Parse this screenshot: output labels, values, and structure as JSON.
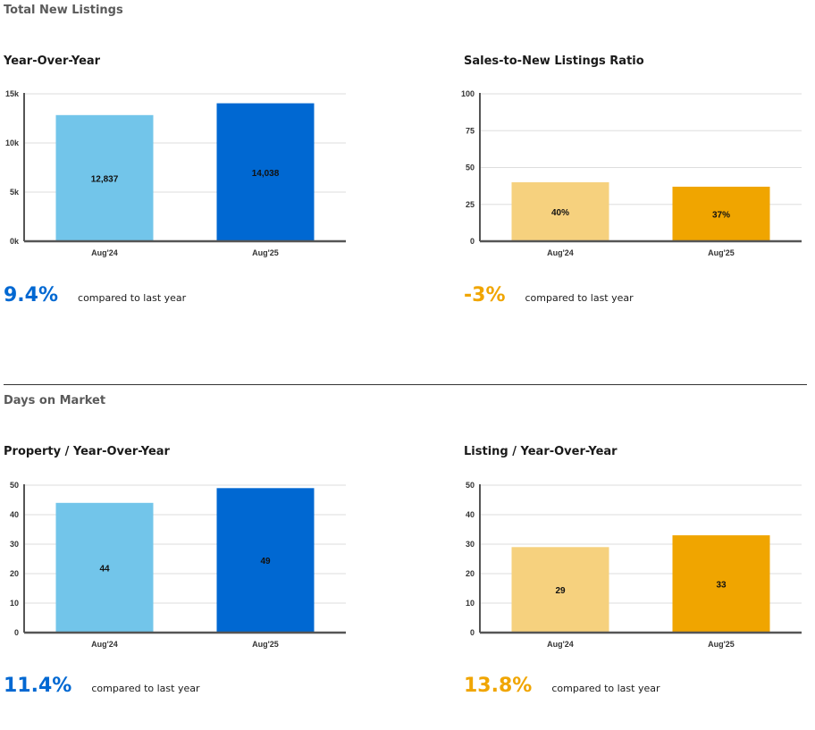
{
  "sections": [
    {
      "title": "Total New Listings"
    },
    {
      "title": "Days on Market"
    }
  ],
  "colors": {
    "blue_light": "#72c5ea",
    "blue_dark": "#0068d2",
    "gold_light": "#f6d17e",
    "gold_dark": "#f0a500",
    "grid": "#dddddd",
    "axis": "#555555"
  },
  "charts": [
    {
      "title": "Year-Over-Year",
      "stat": {
        "value": "9.4%",
        "label": "compared to last year",
        "color": "#0068d2"
      }
    },
    {
      "title": "Sales-to-New Listings Ratio",
      "stat": {
        "value": "-3%",
        "label": "compared to last year",
        "color": "#f0a500"
      }
    },
    {
      "title": "Property / Year-Over-Year",
      "stat": {
        "value": "11.4%",
        "label": "compared to last year",
        "color": "#0068d2"
      }
    },
    {
      "title": "Listing / Year-Over-Year",
      "stat": {
        "value": "13.8%",
        "label": "compared to last year",
        "color": "#f0a500"
      }
    }
  ],
  "chart_data": [
    {
      "type": "bar",
      "title": "Year-Over-Year",
      "categories": [
        "Aug'24",
        "Aug'25"
      ],
      "values": [
        12837,
        14038
      ],
      "data_labels": [
        "12,837",
        "14,038"
      ],
      "yticks": [
        0,
        5000,
        10000,
        15000
      ],
      "ytick_labels": [
        "0k",
        "5k",
        "10k",
        "15k"
      ],
      "ylim": [
        0,
        15000
      ],
      "grid": true,
      "bar_colors": [
        "#72c5ea",
        "#0068d2"
      ]
    },
    {
      "type": "bar",
      "title": "Sales-to-New Listings Ratio",
      "categories": [
        "Aug'24",
        "Aug'25"
      ],
      "values": [
        40,
        37
      ],
      "data_labels": [
        "40%",
        "37%"
      ],
      "yticks": [
        0,
        25,
        50,
        75,
        100
      ],
      "ytick_labels": [
        "0",
        "25",
        "50",
        "75",
        "100"
      ],
      "ylim": [
        0,
        100
      ],
      "grid": true,
      "bar_colors": [
        "#f6d17e",
        "#f0a500"
      ]
    },
    {
      "type": "bar",
      "title": "Property / Year-Over-Year",
      "categories": [
        "Aug'24",
        "Aug'25"
      ],
      "values": [
        44,
        49
      ],
      "data_labels": [
        "44",
        "49"
      ],
      "yticks": [
        0,
        10,
        20,
        30,
        40,
        50
      ],
      "ytick_labels": [
        "0",
        "10",
        "20",
        "30",
        "40",
        "50"
      ],
      "ylim": [
        0,
        50
      ],
      "grid": true,
      "bar_colors": [
        "#72c5ea",
        "#0068d2"
      ]
    },
    {
      "type": "bar",
      "title": "Listing / Year-Over-Year",
      "categories": [
        "Aug'24",
        "Aug'25"
      ],
      "values": [
        29,
        33
      ],
      "data_labels": [
        "29",
        "33"
      ],
      "yticks": [
        0,
        10,
        20,
        30,
        40,
        50
      ],
      "ytick_labels": [
        "0",
        "10",
        "20",
        "30",
        "40",
        "50"
      ],
      "ylim": [
        0,
        50
      ],
      "grid": true,
      "bar_colors": [
        "#f6d17e",
        "#f0a500"
      ]
    }
  ]
}
